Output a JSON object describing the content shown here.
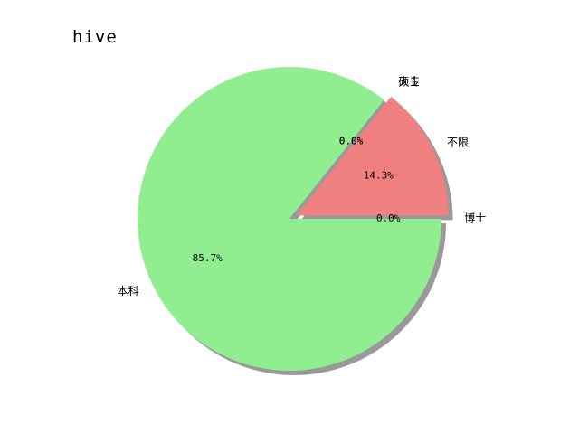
{
  "chart_data": {
    "type": "pie",
    "title": "hive",
    "slices": [
      {
        "label": "不限",
        "value": 14.3,
        "pct_text": "14.3%",
        "color": "#f08080",
        "explode": true
      },
      {
        "label": "大专",
        "value": 0.0,
        "pct_text": "0.0%",
        "color": "#87cefa",
        "explode": true
      },
      {
        "label": "硕士",
        "value": 0.0,
        "pct_text": "0.0%",
        "color": "#ffd700",
        "explode": true
      },
      {
        "label": "本科",
        "value": 85.7,
        "pct_text": "85.7%",
        "color": "#90ee90",
        "explode": false
      },
      {
        "label": "博士",
        "value": 0.0,
        "pct_text": "0.0%",
        "color": "#dda0dd",
        "explode": true
      }
    ],
    "shadow": true,
    "start_angle_deg": 0
  }
}
